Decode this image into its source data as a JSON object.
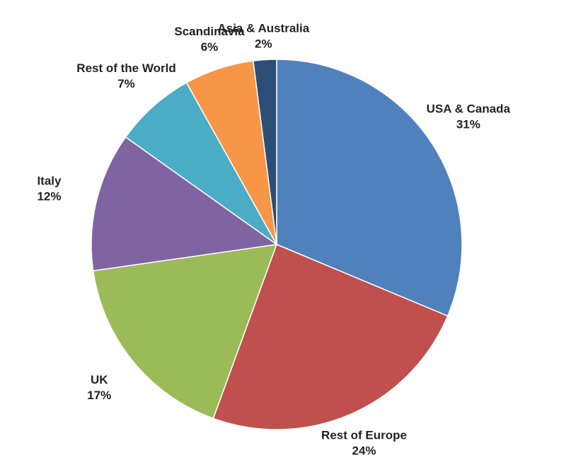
{
  "chart_data": {
    "type": "pie",
    "categories": [
      "USA & Canada",
      "Rest of Europe",
      "UK",
      "Italy",
      "Rest of the World",
      "Scandinavia",
      "Asia & Australia"
    ],
    "values": [
      31,
      24,
      17,
      12,
      7,
      6,
      2
    ],
    "value_labels": [
      "31%",
      "24%",
      "17%",
      "12%",
      "7%",
      "6%",
      "2%"
    ],
    "colors": [
      "#4f81bd",
      "#c0504d",
      "#9bbb59",
      "#8064a2",
      "#4bacc6",
      "#f79646",
      "#2c4d75"
    ]
  }
}
